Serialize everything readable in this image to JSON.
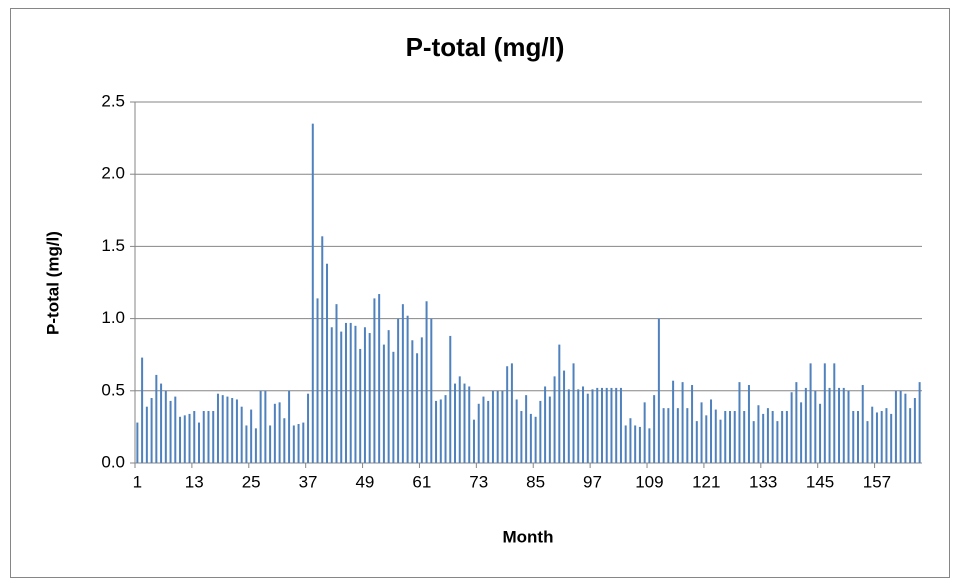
{
  "chart_data": {
    "type": "bar",
    "title": "P-total (mg/l)",
    "x_label": "Month",
    "y_label": "P-total (mg/l)",
    "categories": [
      "1",
      null,
      null,
      null,
      null,
      null,
      null,
      null,
      null,
      null,
      null,
      null,
      "13",
      null,
      null,
      null,
      null,
      null,
      null,
      null,
      null,
      null,
      null,
      null,
      "25",
      null,
      null,
      null,
      null,
      null,
      null,
      null,
      null,
      null,
      null,
      null,
      "37",
      null,
      null,
      null,
      null,
      null,
      null,
      null,
      null,
      null,
      null,
      null,
      "49",
      null,
      null,
      null,
      null,
      null,
      null,
      null,
      null,
      null,
      null,
      null,
      "61",
      null,
      null,
      null,
      null,
      null,
      null,
      null,
      null,
      null,
      null,
      null,
      "73",
      null,
      null,
      null,
      null,
      null,
      null,
      null,
      null,
      null,
      null,
      null,
      "85",
      null,
      null,
      null,
      null,
      null,
      null,
      null,
      null,
      null,
      null,
      null,
      "97",
      null,
      null,
      null,
      null,
      null,
      null,
      null,
      null,
      null,
      null,
      null,
      "109",
      null,
      null,
      null,
      null,
      null,
      null,
      null,
      null,
      null,
      null,
      null,
      "121",
      null,
      null,
      null,
      null,
      null,
      null,
      null,
      null,
      null,
      null,
      null,
      "133",
      null,
      null,
      null,
      null,
      null,
      null,
      null,
      null,
      null,
      null,
      null,
      "145",
      null,
      null,
      null,
      null,
      null,
      null,
      null,
      null,
      null,
      null,
      null,
      "157",
      null,
      null,
      null,
      null,
      null,
      null,
      null,
      null,
      null
    ],
    "values": [
      0.28,
      0.73,
      0.39,
      0.45,
      0.61,
      0.55,
      0.5,
      0.43,
      0.46,
      0.32,
      0.33,
      0.34,
      0.36,
      0.28,
      0.36,
      0.36,
      0.36,
      0.48,
      0.47,
      0.46,
      0.45,
      0.44,
      0.39,
      0.26,
      0.37,
      0.24,
      0.5,
      0.5,
      0.26,
      0.41,
      0.42,
      0.31,
      0.5,
      0.26,
      0.27,
      0.28,
      0.48,
      2.35,
      1.14,
      1.57,
      1.38,
      0.94,
      1.1,
      0.91,
      0.97,
      0.97,
      0.95,
      0.79,
      0.94,
      0.9,
      1.14,
      1.17,
      0.82,
      0.92,
      0.77,
      1.0,
      1.1,
      1.02,
      0.85,
      0.76,
      0.87,
      1.12,
      1.0,
      0.43,
      0.44,
      0.47,
      0.88,
      0.55,
      0.6,
      0.55,
      0.53,
      0.3,
      0.41,
      0.46,
      0.43,
      0.5,
      0.5,
      0.5,
      0.67,
      0.69,
      0.44,
      0.36,
      0.47,
      0.34,
      0.32,
      0.43,
      0.53,
      0.46,
      0.6,
      0.82,
      0.64,
      0.51,
      0.69,
      0.51,
      0.53,
      0.48,
      0.51,
      0.52,
      0.52,
      0.52,
      0.52,
      0.52,
      0.52,
      0.26,
      0.31,
      0.26,
      0.25,
      0.42,
      0.24,
      0.47,
      1.0,
      0.38,
      0.38,
      0.57,
      0.38,
      0.56,
      0.38,
      0.54,
      0.29,
      0.42,
      0.33,
      0.44,
      0.37,
      0.3,
      0.36,
      0.36,
      0.36,
      0.56,
      0.36,
      0.54,
      0.29,
      0.4,
      0.34,
      0.38,
      0.36,
      0.29,
      0.36,
      0.36,
      0.49,
      0.56,
      0.42,
      0.52,
      0.69,
      0.5,
      0.41,
      0.69,
      0.52,
      0.69,
      0.52,
      0.52,
      0.5,
      0.36,
      0.36,
      0.54,
      0.29,
      0.39,
      0.35,
      0.36,
      0.38,
      0.34,
      0.5,
      0.5,
      0.48,
      0.38,
      0.45,
      0.56
    ],
    "color": "#4f81bd",
    "ylim": [
      0,
      2.5
    ],
    "yticks": [
      {
        "value": 0,
        "label": "0.0"
      },
      {
        "value": 0.5,
        "label": "0.5"
      },
      {
        "value": 1,
        "label": "1.0"
      },
      {
        "value": 1.5,
        "label": "1.5"
      },
      {
        "value": 2,
        "label": "2.0"
      },
      {
        "value": 2.5,
        "label": "2.5"
      }
    ],
    "grid": true
  }
}
